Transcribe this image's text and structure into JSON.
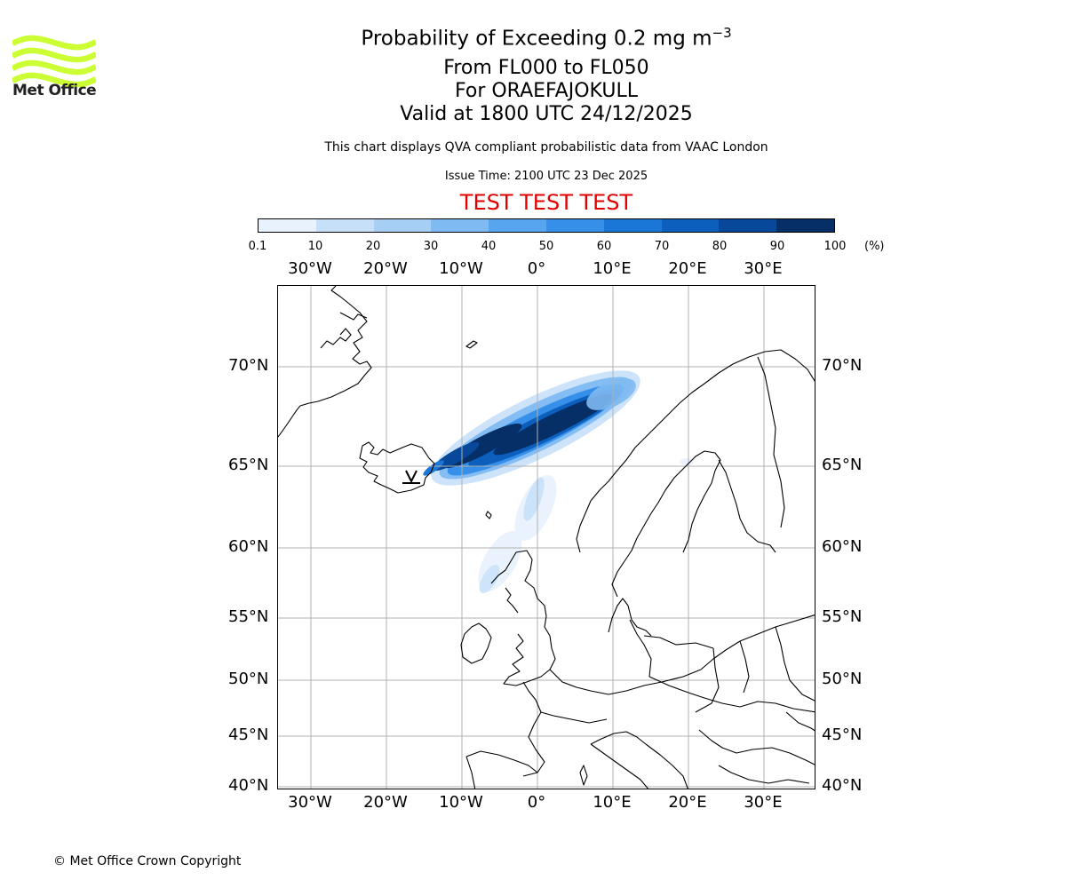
{
  "header": {
    "title_main": "Probability of Exceeding 0.2 mg m",
    "title_exponent": "−3",
    "line2": "From FL000 to FL050",
    "line3": "For ORAEFAJOKULL",
    "line4": "Valid at 1800 UTC 24/12/2025",
    "subtitle": "This chart displays QVA compliant probabilistic data from VAAC London",
    "issue_time": "Issue Time: 2100 UTC 23 Dec 2025",
    "test_banner": "TEST TEST TEST"
  },
  "logo": {
    "text": "Met Office",
    "color": "#ccff33",
    "icon": "met-office-waves-logo"
  },
  "colorbar": {
    "unit": "(%)",
    "ticks": [
      "0.1",
      "10",
      "20",
      "30",
      "40",
      "50",
      "60",
      "70",
      "80",
      "90",
      "100"
    ],
    "colors": [
      "#e8f2fd",
      "#c6e0fa",
      "#a6cff6",
      "#7fbaf2",
      "#57a5ee",
      "#3690ea",
      "#1a77d8",
      "#0d5fbd",
      "#08489a",
      "#052f66"
    ]
  },
  "map": {
    "lon_labels": [
      "30°W",
      "20°W",
      "10°W",
      "0°",
      "10°E",
      "20°E",
      "30°E"
    ],
    "lat_labels": [
      "70°N",
      "65°N",
      "60°N",
      "55°N",
      "50°N",
      "45°N",
      "40°N"
    ],
    "volcano": "ORAEFAJOKULL",
    "gridlines": true,
    "plume_extent": "Iceland south-east coast north-eastward towards northern Norway, with low-probability streak south-east towards Scotland"
  },
  "footer": {
    "copyright": "© Met Office Crown Copyright"
  }
}
